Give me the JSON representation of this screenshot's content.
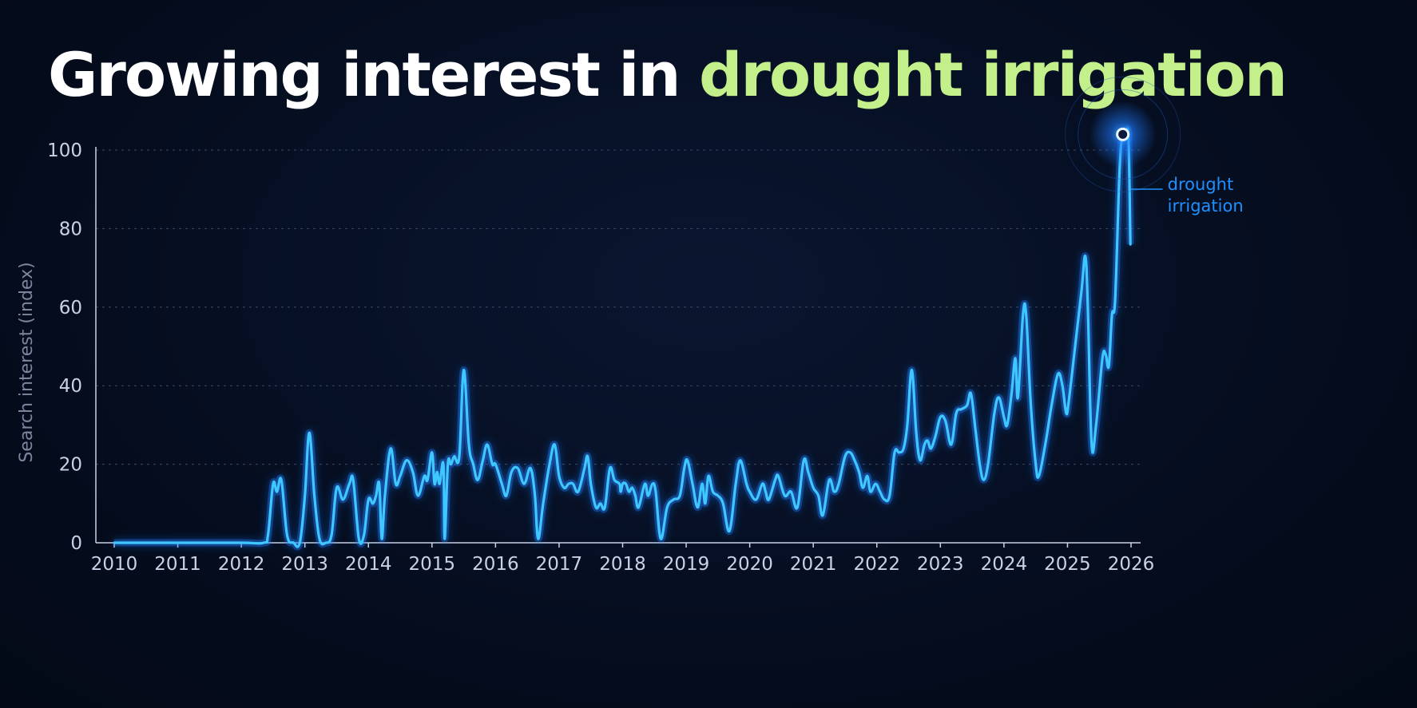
{
  "title": {
    "part1": "Growing interest in ",
    "part2": "drought irrigation"
  },
  "colors": {
    "background": "#050d1f",
    "title": "#ffffff",
    "title_highlight": "#c3f08a",
    "line": "#3ec8ff",
    "line_glow": "#1e7bff",
    "end_label": "#1e90ff",
    "tick_text": "#c8d1e6",
    "axis_label": "#7b869e",
    "grid": "#3e4a63"
  },
  "chart_data": {
    "type": "line",
    "title": "Growing interest in drought irrigation",
    "xlabel": "",
    "ylabel": "Search interest (index)",
    "xlim": [
      2010,
      2026
    ],
    "ylim": [
      0,
      100
    ],
    "xticks": [
      "2010",
      "2011",
      "2012",
      "2013",
      "2014",
      "2015",
      "2016",
      "2017",
      "2018",
      "2019",
      "2020",
      "2021",
      "2022",
      "2023",
      "2024",
      "2025",
      "2026"
    ],
    "yticks": [
      0,
      20,
      40,
      60,
      80,
      100
    ],
    "grid": "horizontal dashed",
    "legend": "inline label at line end",
    "series": [
      {
        "name": "drought irrigation",
        "points": [
          [
            2010.0,
            0
          ],
          [
            2011.0,
            0
          ],
          [
            2012.0,
            0
          ],
          [
            2012.35,
            0
          ],
          [
            2012.42,
            2
          ],
          [
            2012.5,
            15
          ],
          [
            2012.56,
            13
          ],
          [
            2012.63,
            16
          ],
          [
            2012.72,
            2
          ],
          [
            2012.82,
            0
          ],
          [
            2012.92,
            0
          ],
          [
            2013.0,
            12
          ],
          [
            2013.07,
            28
          ],
          [
            2013.15,
            12
          ],
          [
            2013.23,
            1
          ],
          [
            2013.33,
            0
          ],
          [
            2013.42,
            2
          ],
          [
            2013.5,
            14
          ],
          [
            2013.6,
            11
          ],
          [
            2013.7,
            15
          ],
          [
            2013.76,
            16
          ],
          [
            2013.85,
            1
          ],
          [
            2013.93,
            2
          ],
          [
            2014.0,
            11
          ],
          [
            2014.07,
            10
          ],
          [
            2014.12,
            12
          ],
          [
            2014.17,
            15
          ],
          [
            2014.21,
            1
          ],
          [
            2014.26,
            12
          ],
          [
            2014.35,
            24
          ],
          [
            2014.43,
            15
          ],
          [
            2014.5,
            17
          ],
          [
            2014.6,
            21
          ],
          [
            2014.7,
            18
          ],
          [
            2014.78,
            12
          ],
          [
            2014.88,
            17
          ],
          [
            2014.93,
            16
          ],
          [
            2015.0,
            23
          ],
          [
            2015.04,
            15
          ],
          [
            2015.08,
            18
          ],
          [
            2015.12,
            15
          ],
          [
            2015.18,
            20
          ],
          [
            2015.2,
            1
          ],
          [
            2015.25,
            20
          ],
          [
            2015.3,
            20
          ],
          [
            2015.35,
            22
          ],
          [
            2015.43,
            22
          ],
          [
            2015.5,
            44
          ],
          [
            2015.58,
            25
          ],
          [
            2015.65,
            20
          ],
          [
            2015.72,
            16
          ],
          [
            2015.8,
            21
          ],
          [
            2015.87,
            25
          ],
          [
            2015.95,
            20
          ],
          [
            2016.0,
            20
          ],
          [
            2016.1,
            15
          ],
          [
            2016.17,
            12
          ],
          [
            2016.25,
            18
          ],
          [
            2016.35,
            19
          ],
          [
            2016.45,
            15
          ],
          [
            2016.55,
            19
          ],
          [
            2016.62,
            12
          ],
          [
            2016.67,
            1
          ],
          [
            2016.75,
            10
          ],
          [
            2016.85,
            20
          ],
          [
            2016.93,
            25
          ],
          [
            2017.0,
            17
          ],
          [
            2017.08,
            14
          ],
          [
            2017.15,
            15
          ],
          [
            2017.22,
            15
          ],
          [
            2017.3,
            13
          ],
          [
            2017.4,
            19
          ],
          [
            2017.45,
            22
          ],
          [
            2017.5,
            15
          ],
          [
            2017.58,
            9
          ],
          [
            2017.65,
            10
          ],
          [
            2017.72,
            9
          ],
          [
            2017.8,
            19
          ],
          [
            2017.87,
            16
          ],
          [
            2017.95,
            15
          ],
          [
            2017.97,
            13
          ],
          [
            2018.0,
            15
          ],
          [
            2018.05,
            15
          ],
          [
            2018.1,
            13
          ],
          [
            2018.15,
            14
          ],
          [
            2018.2,
            12
          ],
          [
            2018.25,
            9
          ],
          [
            2018.35,
            15
          ],
          [
            2018.4,
            12
          ],
          [
            2018.47,
            15
          ],
          [
            2018.52,
            13
          ],
          [
            2018.6,
            1
          ],
          [
            2018.7,
            9
          ],
          [
            2018.8,
            11
          ],
          [
            2018.9,
            12
          ],
          [
            2018.97,
            19
          ],
          [
            2019.02,
            21
          ],
          [
            2019.1,
            15
          ],
          [
            2019.18,
            9
          ],
          [
            2019.25,
            15
          ],
          [
            2019.3,
            10
          ],
          [
            2019.35,
            17
          ],
          [
            2019.42,
            13
          ],
          [
            2019.5,
            12
          ],
          [
            2019.58,
            10
          ],
          [
            2019.68,
            3
          ],
          [
            2019.78,
            15
          ],
          [
            2019.85,
            21
          ],
          [
            2019.95,
            15
          ],
          [
            2020.0,
            13
          ],
          [
            2020.1,
            11
          ],
          [
            2020.2,
            15
          ],
          [
            2020.25,
            13
          ],
          [
            2020.3,
            11
          ],
          [
            2020.4,
            16
          ],
          [
            2020.45,
            17
          ],
          [
            2020.55,
            12
          ],
          [
            2020.65,
            13
          ],
          [
            2020.75,
            9
          ],
          [
            2020.85,
            21
          ],
          [
            2020.92,
            18
          ],
          [
            2021.0,
            14
          ],
          [
            2021.08,
            12
          ],
          [
            2021.15,
            7
          ],
          [
            2021.25,
            16
          ],
          [
            2021.33,
            13
          ],
          [
            2021.4,
            15
          ],
          [
            2021.5,
            22
          ],
          [
            2021.58,
            23
          ],
          [
            2021.65,
            21
          ],
          [
            2021.72,
            18
          ],
          [
            2021.78,
            14
          ],
          [
            2021.85,
            17
          ],
          [
            2021.9,
            13
          ],
          [
            2021.98,
            15
          ],
          [
            2022.05,
            13
          ],
          [
            2022.12,
            11
          ],
          [
            2022.2,
            12
          ],
          [
            2022.28,
            23
          ],
          [
            2022.35,
            23
          ],
          [
            2022.42,
            24
          ],
          [
            2022.48,
            30
          ],
          [
            2022.55,
            44
          ],
          [
            2022.62,
            28
          ],
          [
            2022.68,
            21
          ],
          [
            2022.75,
            25
          ],
          [
            2022.8,
            26
          ],
          [
            2022.85,
            24
          ],
          [
            2022.92,
            27
          ],
          [
            2023.0,
            32
          ],
          [
            2023.08,
            31
          ],
          [
            2023.17,
            25
          ],
          [
            2023.25,
            33
          ],
          [
            2023.33,
            34
          ],
          [
            2023.42,
            35
          ],
          [
            2023.48,
            38
          ],
          [
            2023.55,
            29
          ],
          [
            2023.62,
            20
          ],
          [
            2023.68,
            16
          ],
          [
            2023.75,
            20
          ],
          [
            2023.85,
            33
          ],
          [
            2023.92,
            37
          ],
          [
            2024.0,
            32
          ],
          [
            2024.05,
            30
          ],
          [
            2024.12,
            38
          ],
          [
            2024.18,
            47
          ],
          [
            2024.22,
            37
          ],
          [
            2024.3,
            58
          ],
          [
            2024.35,
            58
          ],
          [
            2024.42,
            36
          ],
          [
            2024.5,
            20
          ],
          [
            2024.55,
            17
          ],
          [
            2024.65,
            25
          ],
          [
            2024.75,
            35
          ],
          [
            2024.85,
            43
          ],
          [
            2024.92,
            40
          ],
          [
            2024.98,
            33
          ],
          [
            2025.02,
            36
          ],
          [
            2025.12,
            50
          ],
          [
            2025.22,
            64
          ],
          [
            2025.28,
            73
          ],
          [
            2025.32,
            60
          ],
          [
            2025.38,
            25
          ],
          [
            2025.45,
            30
          ],
          [
            2025.55,
            47
          ],
          [
            2025.6,
            48
          ],
          [
            2025.65,
            45
          ],
          [
            2025.7,
            58
          ],
          [
            2025.75,
            62
          ],
          [
            2025.82,
            95
          ],
          [
            2025.87,
            104
          ],
          [
            2025.92,
            104
          ],
          [
            2025.96,
            103
          ],
          [
            2025.99,
            76
          ]
        ]
      }
    ],
    "annotations": [
      {
        "text_lines": [
          "drought",
          "irrigation"
        ],
        "at": "series end"
      }
    ]
  }
}
